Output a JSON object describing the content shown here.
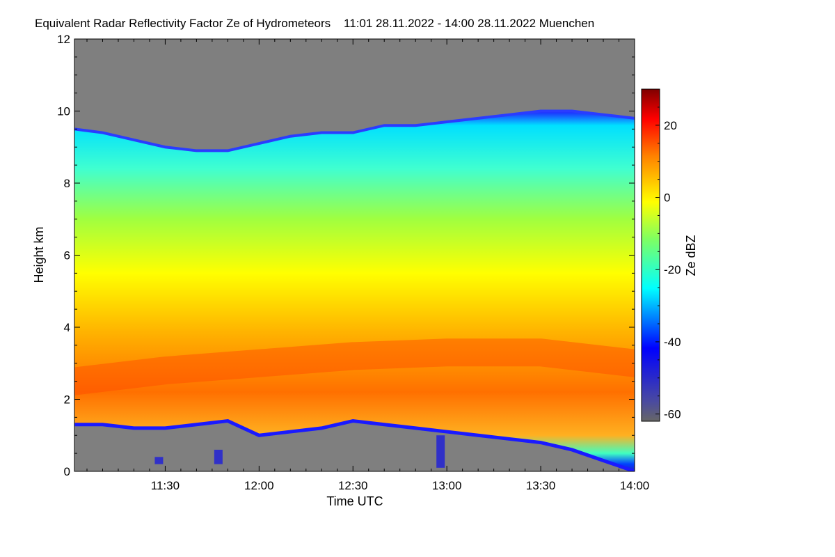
{
  "chart_data": {
    "type": "heatmap",
    "title": "Equivalent Radar Reflectivity Factor Ze of Hydrometeors    11:01 28.11.2022 - 14:00 28.11.2022 Muenchen",
    "xlabel": "Time UTC",
    "ylabel": "Height km",
    "colorbar_label": "Ze dBZ",
    "x_tick_labels": [
      "11:30",
      "12:00",
      "12:30",
      "13:00",
      "13:30",
      "14:00"
    ],
    "x_tick_minutes": [
      30,
      60,
      90,
      120,
      150,
      180
    ],
    "x_range_minutes": [
      1,
      180
    ],
    "y_ticks": [
      0,
      2,
      4,
      6,
      8,
      10,
      12
    ],
    "ylim": [
      0,
      12
    ],
    "colorbar_ticks": [
      20,
      0,
      -20,
      -40,
      -60
    ],
    "colorbar_range": [
      -62,
      30
    ],
    "colorscale": [
      "#4a4a9a",
      "#0000ff",
      "#00ffff",
      "#80ff40",
      "#ffff00",
      "#ff8000",
      "#ff0000",
      "#800000"
    ],
    "background_color": "#7f7f7f",
    "cloud_top_km": [
      [
        1,
        9.5
      ],
      [
        10,
        9.4
      ],
      [
        20,
        9.2
      ],
      [
        30,
        9.0
      ],
      [
        40,
        8.9
      ],
      [
        50,
        8.9
      ],
      [
        60,
        9.1
      ],
      [
        70,
        9.3
      ],
      [
        80,
        9.4
      ],
      [
        90,
        9.4
      ],
      [
        100,
        9.6
      ],
      [
        110,
        9.6
      ],
      [
        120,
        9.7
      ],
      [
        130,
        9.8
      ],
      [
        140,
        9.9
      ],
      [
        150,
        10.0
      ],
      [
        160,
        10.0
      ],
      [
        170,
        9.9
      ],
      [
        180,
        9.8
      ]
    ],
    "cloud_base_km": [
      [
        1,
        1.3
      ],
      [
        10,
        1.3
      ],
      [
        20,
        1.2
      ],
      [
        30,
        1.2
      ],
      [
        40,
        1.3
      ],
      [
        50,
        1.4
      ],
      [
        60,
        1.0
      ],
      [
        70,
        1.1
      ],
      [
        80,
        1.2
      ],
      [
        90,
        1.4
      ],
      [
        100,
        1.3
      ],
      [
        110,
        1.2
      ],
      [
        120,
        1.1
      ],
      [
        130,
        1.0
      ],
      [
        140,
        0.9
      ],
      [
        150,
        0.8
      ],
      [
        160,
        0.6
      ],
      [
        170,
        0.3
      ],
      [
        180,
        0.0
      ]
    ],
    "max_reflectivity_layer_km": [
      [
        1,
        2.5
      ],
      [
        30,
        2.8
      ],
      [
        60,
        3.0
      ],
      [
        90,
        3.2
      ],
      [
        120,
        3.3
      ],
      [
        150,
        3.3
      ],
      [
        180,
        3.0
      ]
    ],
    "low_echoes": [
      {
        "t": 28,
        "base": 0.2,
        "top": 0.4
      },
      {
        "t": 47,
        "base": 0.2,
        "top": 0.6
      },
      {
        "t": 118,
        "base": 0.1,
        "top": 1.0
      }
    ]
  }
}
